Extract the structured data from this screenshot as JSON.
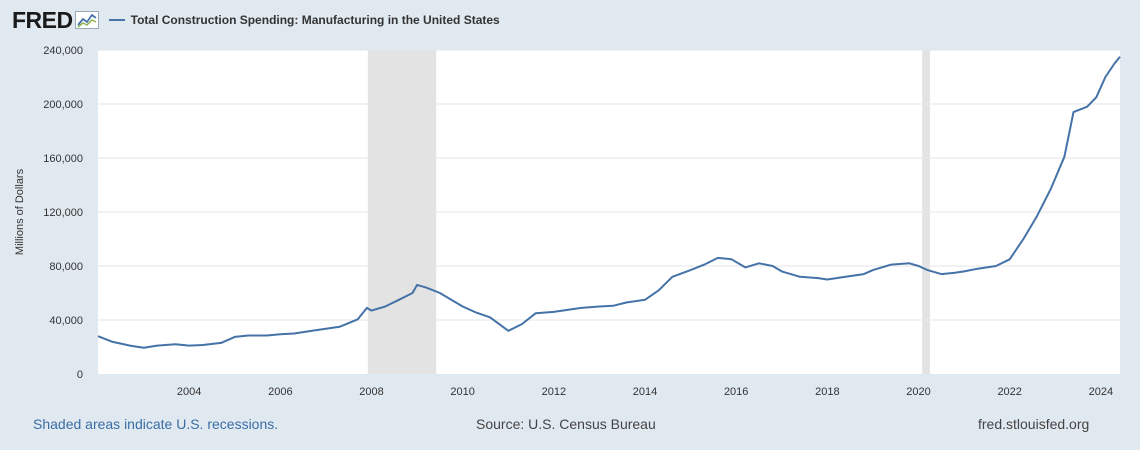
{
  "brand": {
    "logo_text": "FRED"
  },
  "chart_data": {
    "type": "line",
    "title": "Total Construction Spending: Manufacturing in the United States",
    "ylabel": "Millions of Dollars",
    "xlabel": "",
    "xlim": [
      2002.0,
      2024.42
    ],
    "ylim": [
      0,
      240000
    ],
    "yticks": [
      0,
      40000,
      80000,
      120000,
      160000,
      200000,
      240000
    ],
    "ytick_labels": [
      "0",
      "40,000",
      "80,000",
      "120,000",
      "160,000",
      "200,000",
      "240,000"
    ],
    "xticks": [
      2004,
      2006,
      2008,
      2010,
      2012,
      2014,
      2016,
      2018,
      2020,
      2022,
      2024
    ],
    "xtick_labels": [
      "2004",
      "2006",
      "2008",
      "2010",
      "2012",
      "2014",
      "2016",
      "2018",
      "2020",
      "2022",
      "2024"
    ],
    "grid": true,
    "recessions": [
      {
        "start": 2007.92,
        "end": 2009.42
      },
      {
        "start": 2020.08,
        "end": 2020.25
      }
    ],
    "series": [
      {
        "name": "Total Construction Spending: Manufacturing in the United States",
        "color": "#4572a7",
        "x": [
          2002.0,
          2002.3,
          2002.7,
          2003.0,
          2003.3,
          2003.7,
          2004.0,
          2004.3,
          2004.7,
          2005.0,
          2005.3,
          2005.7,
          2006.0,
          2006.3,
          2006.7,
          2007.0,
          2007.3,
          2007.7,
          2007.9,
          2008.0,
          2008.3,
          2008.6,
          2008.9,
          2009.0,
          2009.2,
          2009.5,
          2009.8,
          2010.0,
          2010.3,
          2010.6,
          2011.0,
          2011.3,
          2011.6,
          2012.0,
          2012.3,
          2012.6,
          2013.0,
          2013.3,
          2013.6,
          2014.0,
          2014.3,
          2014.6,
          2015.0,
          2015.3,
          2015.6,
          2015.9,
          2016.2,
          2016.5,
          2016.8,
          2017.0,
          2017.4,
          2017.8,
          2018.0,
          2018.4,
          2018.8,
          2019.0,
          2019.4,
          2019.8,
          2020.0,
          2020.2,
          2020.5,
          2020.8,
          2021.0,
          2021.3,
          2021.7,
          2022.0,
          2022.3,
          2022.6,
          2022.9,
          2023.2,
          2023.4,
          2023.7,
          2023.9,
          2024.1,
          2024.3,
          2024.42
        ],
        "values": [
          28000,
          24000,
          21000,
          19500,
          21000,
          22000,
          21000,
          21500,
          23000,
          27500,
          28500,
          28500,
          29500,
          30000,
          32000,
          33500,
          35000,
          40500,
          49000,
          47000,
          50000,
          55000,
          60000,
          66000,
          64000,
          60000,
          54000,
          50000,
          45500,
          42000,
          32000,
          37000,
          45000,
          46000,
          47500,
          49000,
          50000,
          50500,
          53000,
          55000,
          62000,
          72000,
          77000,
          81000,
          86000,
          85000,
          79000,
          82000,
          80000,
          76000,
          72000,
          71000,
          70000,
          72000,
          74000,
          77000,
          81000,
          82000,
          80000,
          77000,
          74000,
          75000,
          76000,
          78000,
          80000,
          85000,
          100000,
          117000,
          137000,
          161000,
          194000,
          198000,
          205000,
          220000,
          230000,
          235000
        ]
      }
    ]
  },
  "footer": {
    "recession_note": "Shaded areas indicate U.S. recessions.",
    "source": "Source: U.S. Census Bureau",
    "site": "fred.stlouisfed.org"
  }
}
